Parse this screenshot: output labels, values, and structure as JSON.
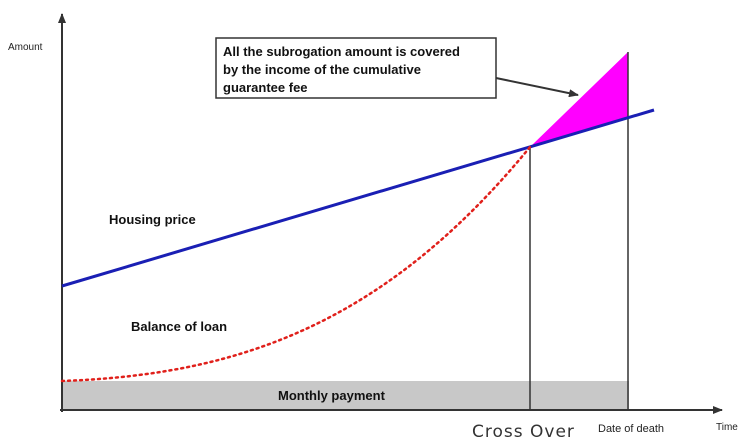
{
  "axes": {
    "y_label": "Amount",
    "x_label": "Time"
  },
  "labels": {
    "housing_price": "Housing price",
    "balance_of_loan": "Balance of loan",
    "monthly_payment": "Monthly payment",
    "cross_over": "Cross  Over",
    "date_of_death": "Date of death"
  },
  "callout": {
    "line1": "All the subrogation amount is covered",
    "line2": "by the income of the cumulative",
    "line3": "guarantee fee"
  },
  "colors": {
    "housing_price_line": "#1a1fb4",
    "loan_balance_curve": "#e0201b",
    "covered_area": "#ff00ff",
    "monthly_payment_band": "#c8c8c8"
  }
}
